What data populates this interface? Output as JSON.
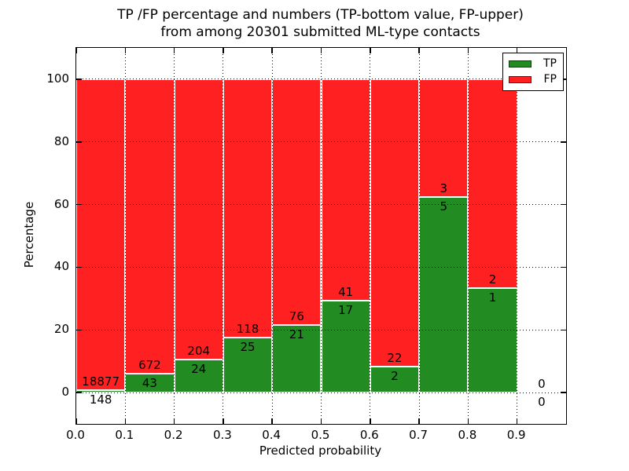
{
  "title": {
    "line1": "TP /FP percentage and numbers (TP-bottom value, FP-upper)",
    "line2": "from among 20301 submitted ML-type contacts"
  },
  "chart_data": {
    "type": "bar",
    "variant": "stacked-percentage-histogram",
    "title": "TP /FP percentage and numbers (TP-bottom value, FP-upper)\nfrom among 20301 submitted ML-type contacts",
    "xlabel": "Predicted probability",
    "ylabel": "Percentage",
    "xlim": [
      0.0,
      1.0
    ],
    "ylim": [
      -10,
      110
    ],
    "xticks": [
      "0.0",
      "0.1",
      "0.2",
      "0.3",
      "0.4",
      "0.5",
      "0.6",
      "0.7",
      "0.8",
      "0.9"
    ],
    "yticks": [
      0,
      20,
      40,
      60,
      80,
      100
    ],
    "grid": "dotted-black-both-axes",
    "total_submitted": 20301,
    "bin_width": 0.1,
    "categories": [
      "0.0-0.1",
      "0.1-0.2",
      "0.2-0.3",
      "0.3-0.4",
      "0.4-0.5",
      "0.5-0.6",
      "0.6-0.7",
      "0.7-0.8",
      "0.8-0.9",
      "0.9-1.0"
    ],
    "series": [
      {
        "name": "TP",
        "color": "#228b22",
        "values": [
          148,
          43,
          24,
          25,
          21,
          17,
          2,
          5,
          1,
          0
        ]
      },
      {
        "name": "FP",
        "color": "#ff2121",
        "values": [
          18877,
          672,
          204,
          118,
          76,
          41,
          22,
          3,
          2,
          0
        ]
      }
    ],
    "tp_percent_of_bin": [
      0.78,
      6.01,
      10.53,
      17.48,
      21.65,
      29.31,
      8.33,
      62.5,
      33.33,
      0
    ],
    "legend": {
      "position": "upper right",
      "entries": [
        {
          "label": "TP",
          "color": "#228b22"
        },
        {
          "label": "FP",
          "color": "#ff2121"
        }
      ]
    },
    "colors": {
      "tp": "#228b22",
      "fp": "#ff2121",
      "edge": "#ffffff",
      "grid": "#000000",
      "text": "#000000"
    }
  }
}
